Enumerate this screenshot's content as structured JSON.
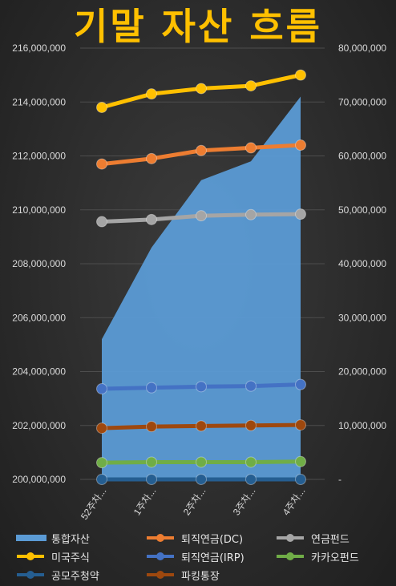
{
  "title": "기말 자산 흐름",
  "chart_data": {
    "type": "line",
    "categories": [
      "52주차...",
      "1주차...",
      "2주차...",
      "3주차...",
      "4주차..."
    ],
    "y_left": {
      "min": 200000000,
      "max": 216000000,
      "ticks": [
        "200,000,000",
        "202,000,000",
        "204,000,000",
        "206,000,000",
        "208,000,000",
        "210,000,000",
        "212,000,000",
        "214,000,000",
        "216,000,000"
      ]
    },
    "y_right": {
      "min": 0,
      "max": 80000000,
      "ticks": [
        "-",
        "10,000,000",
        "20,000,000",
        "30,000,000",
        "40,000,000",
        "50,000,000",
        "60,000,000",
        "70,000,000",
        "80,000,000"
      ]
    },
    "grid": true,
    "legend_position": "bottom",
    "series": [
      {
        "name": "통합자산",
        "kind": "area",
        "axis": "left",
        "color": "#5b9bd5",
        "values": [
          205200000,
          208600000,
          211100000,
          211800000,
          214200000
        ]
      },
      {
        "name": "미국주식",
        "kind": "line",
        "axis": "right",
        "color": "#ffc000",
        "values": [
          69000000,
          71500000,
          72500000,
          73000000,
          75000000
        ]
      },
      {
        "name": "퇴직연금(DC)",
        "kind": "line",
        "axis": "right",
        "color": "#ed7d31",
        "values": [
          58500000,
          59500000,
          61000000,
          61500000,
          62000000
        ]
      },
      {
        "name": "연금펀드",
        "kind": "line",
        "axis": "right",
        "color": "#a5a5a5",
        "values": [
          47800000,
          48200000,
          48900000,
          49100000,
          49200000
        ]
      },
      {
        "name": "퇴직연금(IRP)",
        "kind": "line",
        "axis": "right",
        "color": "#4472c4",
        "values": [
          16800000,
          17000000,
          17200000,
          17300000,
          17600000
        ]
      },
      {
        "name": "파킹통장",
        "kind": "line",
        "axis": "right",
        "color": "#9e480e",
        "values": [
          9500000,
          9800000,
          9900000,
          10000000,
          10100000
        ]
      },
      {
        "name": "카카오펀드",
        "kind": "line",
        "axis": "right",
        "color": "#70ad47",
        "values": [
          3100000,
          3200000,
          3200000,
          3200000,
          3300000
        ]
      },
      {
        "name": "공모주청약",
        "kind": "line",
        "axis": "right",
        "color": "#255e91",
        "values": [
          0,
          0,
          0,
          0,
          0
        ]
      }
    ]
  },
  "legend": [
    {
      "label": "통합자산",
      "color": "#5b9bd5",
      "marker": "band"
    },
    {
      "label": "퇴직연금(DC)",
      "color": "#ed7d31",
      "marker": "line"
    },
    {
      "label": "연금펀드",
      "color": "#a5a5a5",
      "marker": "line"
    },
    {
      "label": "미국주식",
      "color": "#ffc000",
      "marker": "line"
    },
    {
      "label": "퇴직연금(IRP)",
      "color": "#4472c4",
      "marker": "line"
    },
    {
      "label": "카카오펀드",
      "color": "#70ad47",
      "marker": "line"
    },
    {
      "label": "공모주청약",
      "color": "#255e91",
      "marker": "line"
    },
    {
      "label": "파킹통장",
      "color": "#9e480e",
      "marker": "line"
    }
  ]
}
